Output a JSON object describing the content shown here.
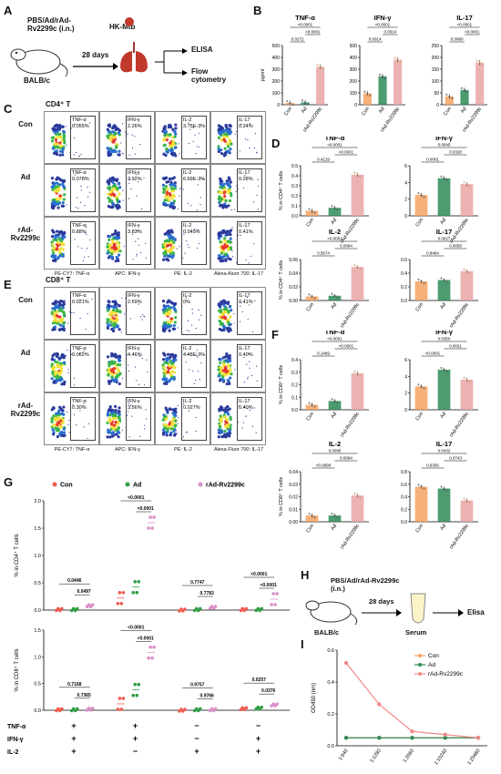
{
  "panels": {
    "A": "A",
    "B": "B",
    "C": "C",
    "D": "D",
    "E": "E",
    "F": "F",
    "G": "G",
    "H": "H",
    "I": "I"
  },
  "panelA": {
    "vaccine": "PBS/Ad/rAd-Rv2299c (i.n.)",
    "mouse": "BALB/c",
    "days": "28 days",
    "challenge": "HK-Mtb",
    "out1": "ELISA",
    "out2": "Flow cytometry"
  },
  "panelH": {
    "vaccine": "PBS/Ad/rAd-Rv2299c (i.n.)",
    "mouse": "BALB/c",
    "days": "28 days",
    "serum": "Serum",
    "out": "Elisa"
  },
  "panelC": {
    "title": "CD4⁺ T",
    "rows": [
      "Con",
      "Ad",
      "rAd-Rv2299c"
    ],
    "gates": [
      [
        [
          "TNF-α",
          "0.055%"
        ],
        [
          "IFN-γ",
          "2.26%"
        ],
        [
          "IL-2",
          "3.75E-3%"
        ],
        [
          "IL-17",
          "0.24%"
        ]
      ],
      [
        [
          "TNF-α",
          "0.078%"
        ],
        [
          "IFN-γ",
          "3.92%"
        ],
        [
          "IL-2",
          "6.69E-3%"
        ],
        [
          "IL-17",
          "0.28%"
        ]
      ],
      [
        [
          "TNF-α",
          "0.38%"
        ],
        [
          "IFN-γ",
          "3.83%"
        ],
        [
          "IL-2",
          "0.045%"
        ],
        [
          "IL-17",
          "0.41%"
        ]
      ]
    ],
    "axes": [
      "PE-CY7: TNF-α",
      "APC: IFN-γ",
      "PE: IL-2",
      "Alexa Aluor 700: IL-17"
    ]
  },
  "panelE": {
    "title": "CD8⁺ T",
    "rows": [
      "Con",
      "Ad",
      "rAd-Rv2299c"
    ],
    "gates": [
      [
        [
          "TNF-α",
          "0.021%"
        ],
        [
          "IFN-γ",
          "2.59%"
        ],
        [
          "IL-2",
          "0%"
        ],
        [
          "IL-17",
          "0.41%"
        ]
      ],
      [
        [
          "TNF-α",
          "0.062%"
        ],
        [
          "IFN-γ",
          "4.46%"
        ],
        [
          "IL-2",
          "4.48E-3%"
        ],
        [
          "IL-17",
          "0.40%"
        ]
      ],
      [
        [
          "TNF-α",
          "0.30%"
        ],
        [
          "IFN-γ",
          "3.56%"
        ],
        [
          "IL-2",
          "0.027%"
        ],
        [
          "IL-17",
          "0.40%"
        ]
      ]
    ],
    "axes": [
      "PE-CY7: TNF-α",
      "APC: IFN-γ",
      "PE: IL-2",
      "Alexa Fluor 700: IL-17"
    ]
  },
  "colors": {
    "con": "#f4a261",
    "ad": "#2e8b57",
    "rad": "#e8a5a5",
    "red": "#f05a4f",
    "green": "#2f9e44",
    "pink": "#d98fc7"
  },
  "chart_data": [
    {
      "panel": "B",
      "type": "bar",
      "title": "TNF-α",
      "ylabel": "pg/ml",
      "categories": [
        "Con",
        "Ad",
        "rAd-Rv2299c"
      ],
      "values": [
        15,
        20,
        320
      ],
      "ylim": [
        0,
        500
      ],
      "yticks": [
        0,
        100,
        200,
        300,
        400,
        500
      ],
      "pvalues": [
        "0.0272",
        "<0.0001",
        "<0.0001"
      ]
    },
    {
      "panel": "B",
      "type": "bar",
      "title": "IFN-γ",
      "categories": [
        "Con",
        "Ad",
        "rAd-Rv2299c"
      ],
      "values": [
        95,
        240,
        380
      ],
      "ylim": [
        0,
        500
      ],
      "yticks": [
        0,
        100,
        200,
        300,
        400,
        500
      ],
      "pvalues": [
        "0.0014",
        "0.0014",
        "<0.0001"
      ]
    },
    {
      "panel": "B",
      "type": "bar",
      "title": "IL-17",
      "categories": [
        "Con",
        "Ad",
        "rAd-Rv2299c"
      ],
      "values": [
        35,
        62,
        178
      ],
      "ylim": [
        0,
        250
      ],
      "yticks": [
        0,
        50,
        100,
        150,
        200,
        250
      ],
      "pvalues": [
        "0.0060",
        "<0.0001",
        "<0.0001"
      ]
    },
    {
      "panel": "D",
      "type": "bar",
      "title": "TNF-α",
      "ylabel": "% in CD4⁺ T cells",
      "categories": [
        "Con",
        "Ad",
        "rAd-Rv2299c"
      ],
      "values": [
        0.05,
        0.08,
        0.41
      ],
      "ylim": [
        0,
        0.5
      ],
      "yticks": [
        "0.0",
        "0.1",
        "0.2",
        "0.3",
        "0.4",
        "0.5"
      ],
      "pvalues": [
        "0.4219",
        "<0.0001",
        "<0.0001"
      ]
    },
    {
      "panel": "D",
      "type": "bar",
      "title": "IFN-γ",
      "categories": [
        "Con",
        "Ad",
        "rAd-Rv2299c"
      ],
      "values": [
        2.5,
        4.5,
        3.8
      ],
      "ylim": [
        0,
        6
      ],
      "yticks": [
        "0",
        "2",
        "4",
        "6"
      ],
      "pvalues": [
        "0.0001",
        "0.0328",
        "0.0045"
      ]
    },
    {
      "panel": "D",
      "type": "bar",
      "title": "IL-2",
      "ylabel": "% in CD4⁺ T cells",
      "categories": [
        "Con",
        "Ad",
        "rAd-Rv2299c"
      ],
      "values": [
        0.006,
        0.007,
        0.049
      ],
      "ylim": [
        0,
        0.06
      ],
      "yticks": [
        "0.00",
        "0.02",
        "0.04",
        "0.06"
      ],
      "pvalues": [
        "0.5674",
        "0.0094",
        "<0.0001"
      ]
    },
    {
      "panel": "D",
      "type": "bar",
      "title": "IL-17",
      "categories": [
        "Con",
        "Ad",
        "rAd-Rv2299c"
      ],
      "values": [
        0.28,
        0.3,
        0.43
      ],
      "ylim": [
        0,
        0.6
      ],
      "yticks": [
        "0.0",
        "0.2",
        "0.4",
        "0.6"
      ],
      "pvalues": [
        "0.8464",
        "0.0058",
        "0.0027"
      ]
    },
    {
      "panel": "F",
      "type": "bar",
      "title": "TNF-α",
      "ylabel": "% in CD8⁺ T cells",
      "categories": [
        "Con",
        "Ad",
        "rAd-Rv2299c"
      ],
      "values": [
        0.04,
        0.07,
        0.29
      ],
      "ylim": [
        0,
        0.4
      ],
      "yticks": [
        "0.0",
        "0.1",
        "0.2",
        "0.3",
        "0.4"
      ],
      "pvalues": [
        "0.1469",
        "<0.0001",
        "<0.0001"
      ]
    },
    {
      "panel": "F",
      "type": "bar",
      "title": "IFN-γ",
      "categories": [
        "Con",
        "Ad",
        "rAd-Rv2299c"
      ],
      "values": [
        2.8,
        4.8,
        3.6
      ],
      "ylim": [
        0,
        6
      ],
      "yticks": [
        "0",
        "2",
        "4",
        "6"
      ],
      "pvalues": [
        "<0.0001",
        "0.0021",
        "0.0350"
      ]
    },
    {
      "panel": "F",
      "type": "bar",
      "title": "IL-2",
      "ylabel": "% in CD8⁺ T cells",
      "categories": [
        "Con",
        "Ad",
        "rAd-Rv2299c"
      ],
      "values": [
        0.005,
        0.005,
        0.021
      ],
      "ylim": [
        0,
        0.04
      ],
      "yticks": [
        "0.00",
        "0.01",
        "0.02",
        "0.03",
        "0.04"
      ],
      "pvalues": [
        ">0.9999",
        "0.0094",
        "0.0095"
      ]
    },
    {
      "panel": "F",
      "type": "bar",
      "title": "IL-17",
      "categories": [
        "Con",
        "Ad",
        "rAd-Rv2299c"
      ],
      "values": [
        0.56,
        0.53,
        0.34
      ],
      "ylim": [
        0,
        0.8
      ],
      "yticks": [
        "0.0",
        "0.2",
        "0.4",
        "0.6",
        "0.8"
      ],
      "pvalues": [
        "0.9356",
        "0.0743",
        "0.0432"
      ]
    },
    {
      "panel": "G",
      "type": "scatter",
      "ylabel": "% in CD4⁺ T cells",
      "legend": [
        "Con",
        "Ad",
        "rAd-Rv2299c"
      ],
      "groups": [
        "+/+/+",
        "+/+/−",
        "−/−/+",
        "−/+/+"
      ],
      "means": [
        [
          0.01,
          0.01,
          0.08
        ],
        [
          0.22,
          0.42,
          1.6
        ],
        [
          0.0,
          0.01,
          0.05
        ],
        [
          0.01,
          0.01,
          0.2
        ]
      ],
      "ylim": [
        0,
        2
      ],
      "yticks": [
        "0.0",
        "0.5",
        "1.0",
        "1.5",
        "2.0"
      ],
      "pvalues": [
        [
          "0.0446",
          "0.0497"
        ],
        [
          "<0.0001",
          "<0.0001"
        ],
        [
          "0.7747",
          "0.7783"
        ],
        [
          "<0.0001",
          "<0.0001"
        ]
      ]
    },
    {
      "panel": "G",
      "type": "scatter",
      "ylabel": "% in CD8⁺ T cells",
      "groups": [
        "+/+/+",
        "+/+/−",
        "−/−/+",
        "−/+/+"
      ],
      "means": [
        [
          0.01,
          0.01,
          0.02
        ],
        [
          0.12,
          0.38,
          1.08
        ],
        [
          0.0,
          0.01,
          0.01
        ],
        [
          0.03,
          0.04,
          0.1
        ]
      ],
      "ylim": [
        0,
        1.5
      ],
      "yticks": [
        "0.0",
        "0.5",
        "1.0",
        "1.5"
      ],
      "pvalues": [
        [
          "0.7168",
          "0.7365"
        ],
        [
          "<0.0001",
          "<0.0001"
        ],
        [
          "0.9757",
          "0.9766"
        ],
        [
          "0.0257",
          "0.0376"
        ]
      ]
    },
    {
      "panel": "I",
      "type": "line",
      "ylabel": "OD450 (nm)",
      "categories": [
        "1:640",
        "1:1280",
        "1:2560",
        "1:10240",
        "1:20480"
      ],
      "series": [
        {
          "name": "Con",
          "values": [
            0.05,
            0.05,
            0.05,
            0.05,
            0.05
          ]
        },
        {
          "name": "Ad",
          "values": [
            0.05,
            0.05,
            0.05,
            0.05,
            0.05
          ]
        },
        {
          "name": "rAd-Rv2299c",
          "values": [
            0.52,
            0.26,
            0.09,
            0.07,
            0.05
          ]
        }
      ],
      "ylim": [
        0,
        0.6
      ],
      "yticks": [
        "0.0",
        "0.2",
        "0.4",
        "0.6"
      ]
    }
  ],
  "rowLabels": {
    "tnf": "TNF-α",
    "ifn": "IFN-γ",
    "il2": "IL-2",
    "signs": [
      [
        "+",
        "+",
        "−",
        "−"
      ],
      [
        "+",
        "+",
        "−",
        "+"
      ],
      [
        "+",
        "−",
        "+",
        "+"
      ]
    ]
  }
}
